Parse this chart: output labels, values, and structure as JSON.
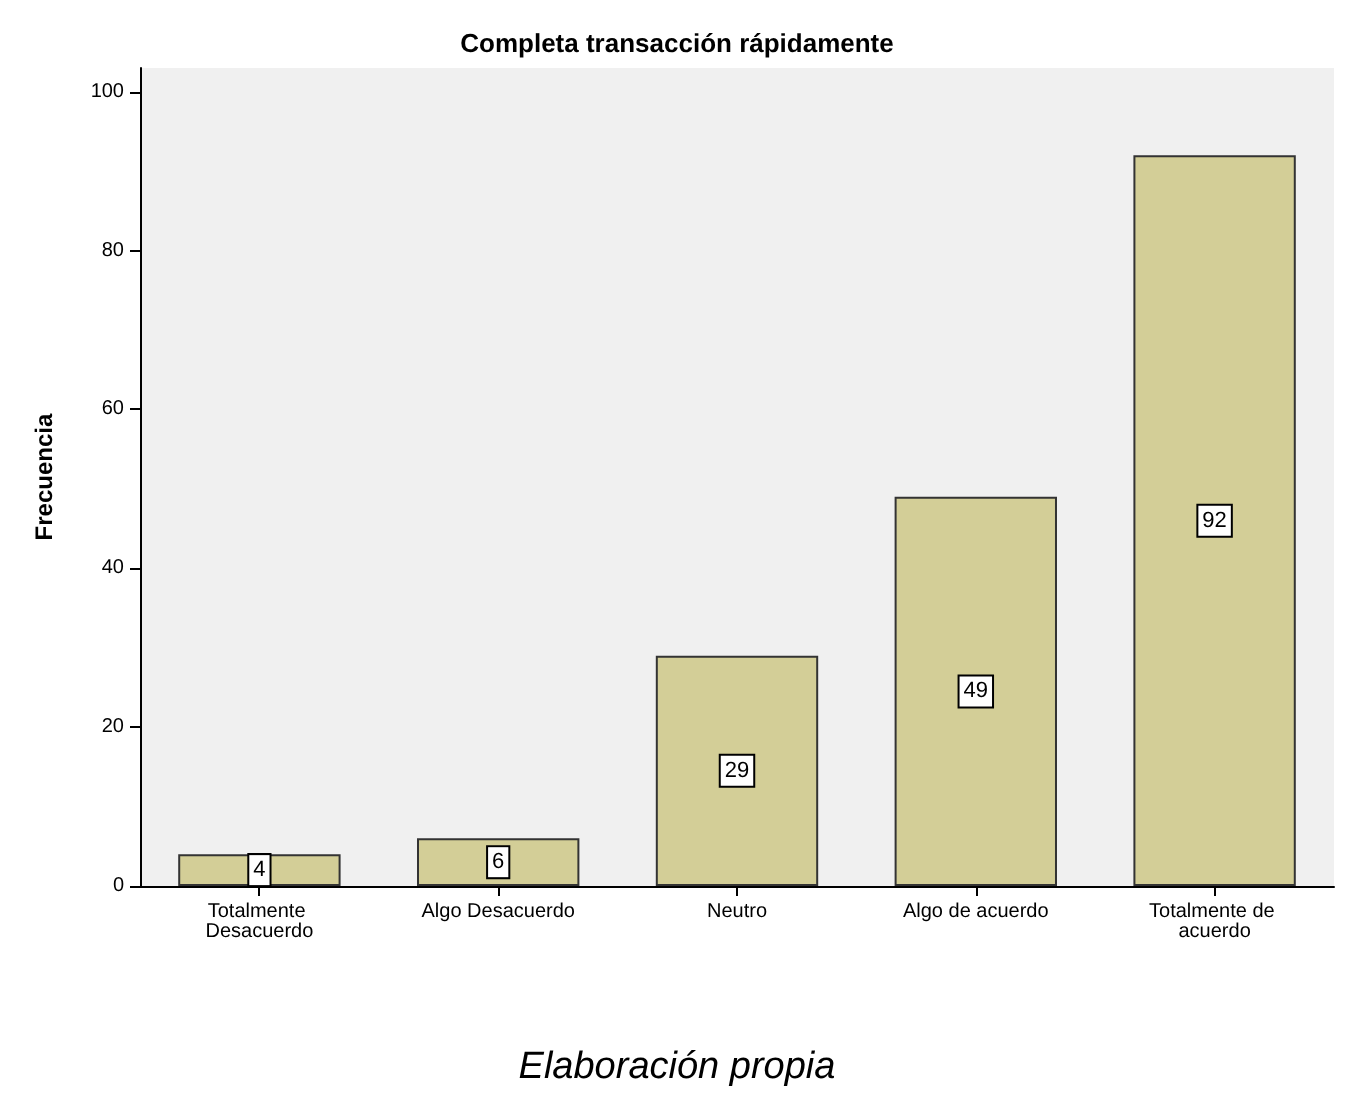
{
  "chart_data": {
    "type": "bar",
    "title": "Completa transacción rápidamente",
    "ylabel": "Frecuencia",
    "categories": [
      "Totalmente Desacuerdo",
      "Algo Desacuerdo",
      "Neutro",
      "Algo de acuerdo",
      "Totalmente de acuerdo"
    ],
    "values": [
      4,
      6,
      29,
      49,
      92
    ],
    "color": "#d3ce97",
    "ylim": [
      0,
      103
    ],
    "yticks": [
      0,
      20,
      40,
      60,
      80,
      100
    ],
    "grid": false,
    "data_labels": true,
    "annotations": [
      "Elaboración propia"
    ]
  }
}
